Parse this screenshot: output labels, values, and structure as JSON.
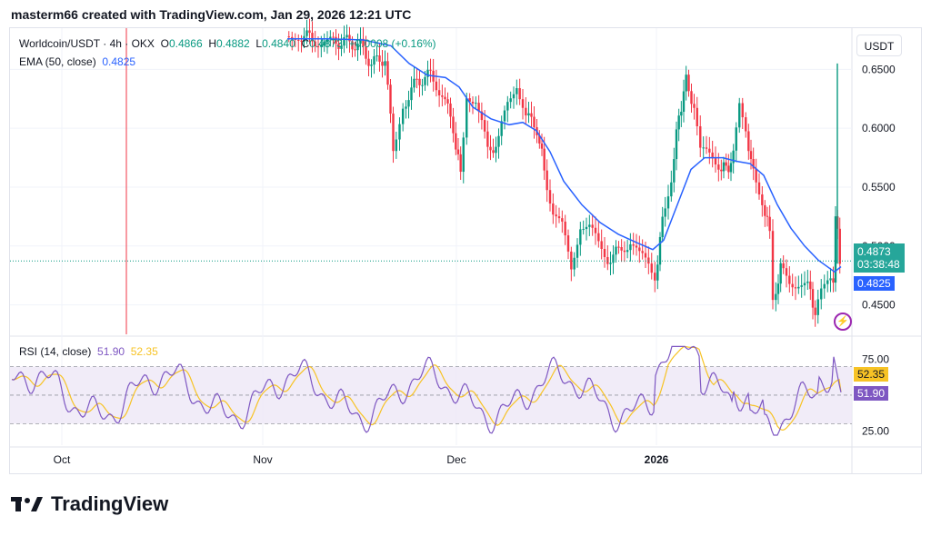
{
  "header": {
    "text": "masterm66 created with TradingView.com, Jan 29, 2026 12:21 UTC"
  },
  "legend": {
    "symbol": "Worldcoin/USDT · 4h · OKX",
    "o_label": "O",
    "o": "0.4866",
    "h_label": "H",
    "h": "0.4882",
    "l_label": "L",
    "l": "0.4840",
    "c_label": "C",
    "c": "0.4873",
    "change": "+0.0008 (+0.16%)",
    "ema_label": "EMA (50, close)",
    "ema_value": "0.4825",
    "rsi_label": "RSI (14, close)",
    "rsi_value": "51.90",
    "rsi_ema_value": "52.35"
  },
  "axis": {
    "currency": "USDT",
    "price_ticks": [
      "0.6500",
      "0.6000",
      "0.5500",
      "0.5000",
      "0.4500"
    ],
    "rsi_ticks": [
      "75.00",
      "25.00"
    ],
    "time_ticks": [
      "Oct",
      "Nov",
      "Dec",
      "2026"
    ]
  },
  "tags": {
    "price": "0.4873",
    "countdown": "03:38:48",
    "ema": "0.4825",
    "rsi_ema": "52.35",
    "rsi": "51.90"
  },
  "logo": {
    "text": "TradingView"
  },
  "colors": {
    "up": "#089981",
    "down": "#f23645",
    "ema": "#2962ff",
    "rsi": "#7e57c2",
    "rsi_ema": "#f7c325"
  },
  "chart_data": [
    {
      "type": "candlestick",
      "title": "Worldcoin/USDT · 4h · OKX",
      "x_ticks": [
        "Oct",
        "Nov",
        "Dec",
        "2026"
      ],
      "y_ticks": [
        0.65,
        0.6,
        0.55,
        0.5,
        0.45
      ],
      "ylim": [
        0.425,
        0.685
      ],
      "series": [
        {
          "name": "close (approx)",
          "x": [
            "Oct",
            "Nov",
            "Dec",
            "2026",
            "last"
          ],
          "values": [
            0.67,
            0.676,
            0.62,
            0.51,
            0.4873
          ]
        },
        {
          "name": "EMA (50, close)",
          "x": [
            "Oct",
            "Nov",
            "Dec",
            "2026",
            "last"
          ],
          "values": [
            0.675,
            0.675,
            0.61,
            0.5,
            0.4825
          ]
        }
      ],
      "last": {
        "open": 0.4866,
        "high": 0.4882,
        "low": 0.484,
        "close": 0.4873
      }
    },
    {
      "type": "line",
      "title": "RSI (14, close)",
      "y_ticks": [
        75,
        25
      ],
      "ylim": [
        15,
        90
      ],
      "band": [
        70,
        30
      ],
      "series": [
        {
          "name": "RSI",
          "last": 51.9
        },
        {
          "name": "RSI-based MA",
          "last": 52.35
        }
      ]
    }
  ]
}
